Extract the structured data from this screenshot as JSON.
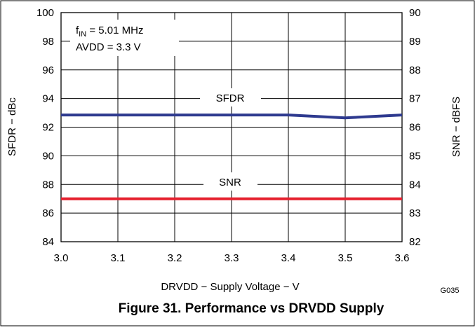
{
  "figure": {
    "caption": "Figure 31. Performance vs DRVDD Supply",
    "code": "G035"
  },
  "chart_data": {
    "type": "line",
    "xlabel": "DRVDD − Supply Voltage − V",
    "ylabel_left": "SFDR − dBc",
    "ylabel_right": "SNR − dBFS",
    "xlim": [
      3.0,
      3.6
    ],
    "ylim_left": [
      84,
      100
    ],
    "ylim_right": [
      82,
      90
    ],
    "x_ticks": [
      "3.0",
      "3.1",
      "3.2",
      "3.3",
      "3.4",
      "3.5",
      "3.6"
    ],
    "y_left_ticks": [
      "84",
      "86",
      "88",
      "90",
      "92",
      "94",
      "96",
      "98",
      "100"
    ],
    "y_right_ticks": [
      "82",
      "83",
      "84",
      "85",
      "86",
      "87",
      "88",
      "89",
      "90"
    ],
    "grid": true,
    "annotation": {
      "line1_main": "f",
      "line1_sub": "IN",
      "line1_rest": " = 5.01 MHz",
      "line2": "AVDD = 3.3 V"
    },
    "series": [
      {
        "name": "SFDR",
        "axis": "left",
        "color": "#2e3a8f",
        "x": [
          3.0,
          3.1,
          3.2,
          3.3,
          3.4,
          3.5,
          3.6
        ],
        "values": [
          92.85,
          92.85,
          92.85,
          92.85,
          92.85,
          92.65,
          92.85
        ]
      },
      {
        "name": "SNR",
        "axis": "right",
        "color": "#e5202e",
        "x": [
          3.0,
          3.1,
          3.2,
          3.3,
          3.4,
          3.5,
          3.6
        ],
        "values": [
          83.5,
          83.5,
          83.5,
          83.5,
          83.5,
          83.5,
          83.5
        ]
      }
    ]
  }
}
